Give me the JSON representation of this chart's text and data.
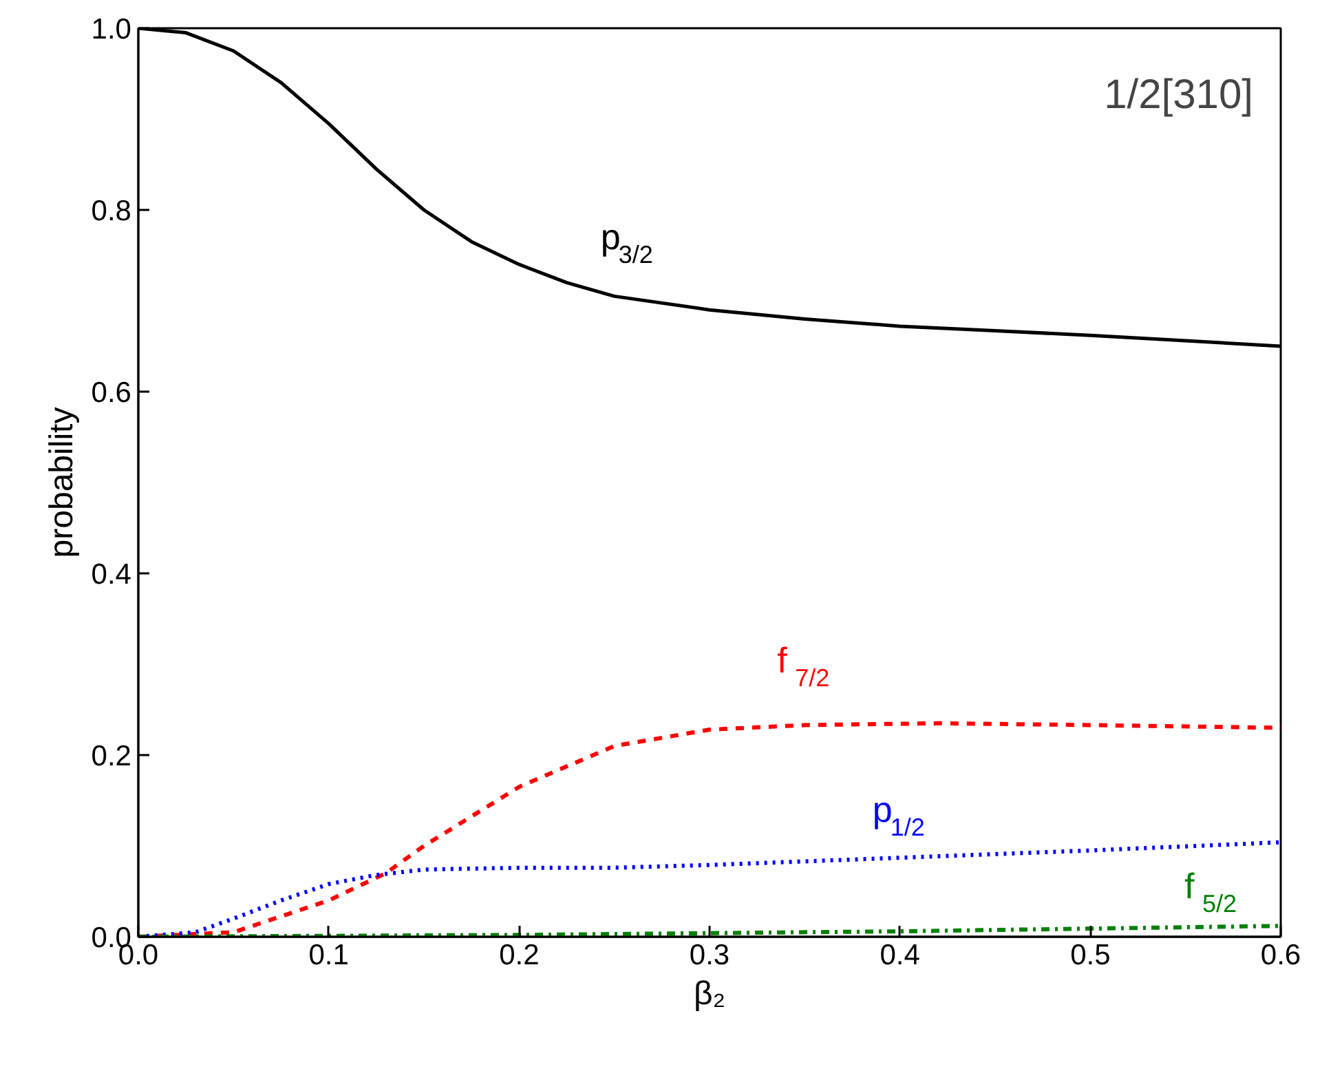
{
  "chart_data": {
    "type": "line",
    "xlabel": "β₂",
    "ylabel": "probability",
    "annotations": [
      "1/2[310]"
    ],
    "xlim": [
      0,
      0.6
    ],
    "ylim": [
      0,
      1.0
    ],
    "xticks": [
      {
        "value": 0,
        "label": "0.0"
      },
      {
        "value": 0.1,
        "label": "0.1"
      },
      {
        "value": 0.2,
        "label": "0.2"
      },
      {
        "value": 0.3,
        "label": "0.3"
      },
      {
        "value": 0.4,
        "label": "0.4"
      },
      {
        "value": 0.5,
        "label": "0.5"
      },
      {
        "value": 0.6,
        "label": "0.6"
      }
    ],
    "yticks": [
      {
        "value": 0,
        "label": "0.0"
      },
      {
        "value": 0.2,
        "label": "0.2"
      },
      {
        "value": 0.4,
        "label": "0.4"
      },
      {
        "value": 0.6,
        "label": "0.6"
      },
      {
        "value": 0.8,
        "label": "0.8"
      },
      {
        "value": 1.0,
        "label": "1.0"
      }
    ],
    "grid": false,
    "marker": "none",
    "series": [
      {
        "name": "p$_{3/2}$",
        "color": "#000000",
        "line_style": "solid",
        "x": [
          0,
          0.025,
          0.05,
          0.075,
          0.1,
          0.125,
          0.15,
          0.175,
          0.2,
          0.225,
          0.25,
          0.3,
          0.35,
          0.4,
          0.45,
          0.5,
          0.55,
          0.6
        ],
        "values": [
          1.0,
          0.995,
          0.975,
          0.94,
          0.895,
          0.845,
          0.8,
          0.765,
          0.74,
          0.72,
          0.705,
          0.69,
          0.68,
          0.672,
          0.667,
          0.662,
          0.656,
          0.65
        ]
      },
      {
        "name": "f$_{7/2}$",
        "color": "#ff0000",
        "line_style": "dashed",
        "x": [
          0,
          0.05,
          0.1,
          0.13,
          0.15,
          0.2,
          0.25,
          0.3,
          0.35,
          0.42,
          0.5,
          0.6
        ],
        "values": [
          0,
          0.005,
          0.04,
          0.07,
          0.1,
          0.165,
          0.21,
          0.228,
          0.233,
          0.235,
          0.233,
          0.23
        ]
      },
      {
        "name": "p$_{1/2}$",
        "color": "#0000ff",
        "line_style": "dotted",
        "x": [
          0,
          0.03,
          0.05,
          0.075,
          0.1,
          0.125,
          0.15,
          0.2,
          0.25,
          0.3,
          0.4,
          0.5,
          0.6
        ],
        "values": [
          0,
          0.005,
          0.02,
          0.04,
          0.058,
          0.068,
          0.074,
          0.076,
          0.076,
          0.079,
          0.087,
          0.095,
          0.104
        ]
      },
      {
        "name": "f$_{5/2}$",
        "color": "#008000",
        "line_style": "dashdot",
        "x": [
          0,
          0.2,
          0.3,
          0.4,
          0.5,
          0.6
        ],
        "values": [
          0,
          0.002,
          0.004,
          0.006,
          0.009,
          0.012
        ]
      }
    ]
  }
}
